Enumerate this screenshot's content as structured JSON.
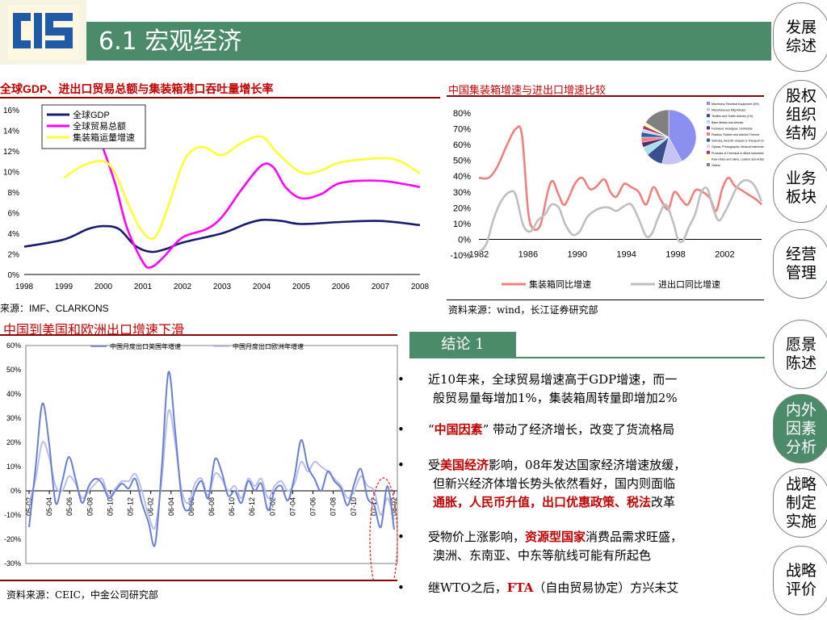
{
  "header": {
    "title": "6.1 宏观经济",
    "logo_color": "#1f5aa6"
  },
  "nav": {
    "items": [
      {
        "label": "发展\n综述",
        "active": false
      },
      {
        "label": "股权\n组织\n结构",
        "active": false
      },
      {
        "label": "业务\n板块",
        "active": false
      },
      {
        "label": "经营\n管理",
        "active": false
      },
      {
        "label": "愿景\n陈述",
        "active": false
      },
      {
        "label": "内外\n因素\n分析",
        "active": true
      },
      {
        "label": "战略\n制定\n实施",
        "active": false
      },
      {
        "label": "战略\n评价",
        "active": false
      }
    ]
  },
  "chart1": {
    "title_parts": [
      "全球",
      "GDP",
      "、进出口贸易总额与集装箱港口吞吐量增长率"
    ],
    "source": "来源：IMF、CLARKONS",
    "chart_data": {
      "type": "line",
      "x": [
        "1998",
        "1999",
        "2000",
        "2001",
        "2002",
        "2003",
        "2004",
        "2005",
        "2006",
        "2007",
        "2008"
      ],
      "yticks": [
        "0%",
        "2%",
        "4%",
        "6%",
        "8%",
        "10%",
        "12%",
        "14%",
        "16%"
      ],
      "ylim": [
        0,
        16
      ],
      "series": [
        {
          "name": "全球GDP",
          "color": "#1a1a6e",
          "points": [
            [
              1998,
              2.7
            ],
            [
              1999,
              3.4
            ],
            [
              1999.6,
              4.4
            ],
            [
              2000,
              4.7
            ],
            [
              2000.4,
              4.4
            ],
            [
              2000.8,
              2.8
            ],
            [
              2001.2,
              2.2
            ],
            [
              2001.6,
              2.5
            ],
            [
              2002,
              3.1
            ],
            [
              2003,
              4.0
            ],
            [
              2003.6,
              4.9
            ],
            [
              2004,
              5.3
            ],
            [
              2004.5,
              5.2
            ],
            [
              2005,
              4.9
            ],
            [
              2006,
              5.1
            ],
            [
              2007,
              5.2
            ],
            [
              2008,
              4.8
            ]
          ]
        },
        {
          "name": "全球贸易总额",
          "color": "#ff00ff",
          "points": [
            [
              2000,
              12.2
            ],
            [
              2000.3,
              8.8
            ],
            [
              2000.6,
              4.5
            ],
            [
              2001,
              1.2
            ],
            [
              2001.2,
              0.7
            ],
            [
              2001.5,
              1.6
            ],
            [
              2002,
              3.6
            ],
            [
              2002.6,
              4.4
            ],
            [
              2003,
              5.6
            ],
            [
              2003.5,
              8.3
            ],
            [
              2004,
              10.6
            ],
            [
              2004.3,
              10.4
            ],
            [
              2004.6,
              8.5
            ],
            [
              2005,
              7.4
            ],
            [
              2005.5,
              7.8
            ],
            [
              2006,
              8.9
            ],
            [
              2007,
              9.1
            ],
            [
              2008,
              8.5
            ]
          ]
        },
        {
          "name": "集装箱运量增速",
          "color": "#ffff33",
          "points": [
            [
              1999,
              9.4
            ],
            [
              1999.5,
              10.6
            ],
            [
              2000,
              11.0
            ],
            [
              2000.3,
              9.8
            ],
            [
              2000.7,
              6.2
            ],
            [
              2001,
              4.1
            ],
            [
              2001.3,
              3.6
            ],
            [
              2001.6,
              6.2
            ],
            [
              2002,
              10.7
            ],
            [
              2002.3,
              12.2
            ],
            [
              2002.6,
              12.3
            ],
            [
              2003,
              11.6
            ],
            [
              2003.5,
              12.8
            ],
            [
              2004,
              13.4
            ],
            [
              2004.4,
              11.8
            ],
            [
              2005,
              9.9
            ],
            [
              2005.5,
              10.1
            ],
            [
              2006,
              10.9
            ],
            [
              2007,
              11.3
            ],
            [
              2007.5,
              11.0
            ],
            [
              2008,
              9.8
            ]
          ]
        }
      ]
    }
  },
  "chart2": {
    "title": "中国集装箱增速与进出口增速比较",
    "source": "资料来源：wind，长江证券研究部",
    "chart_data": {
      "type": "line",
      "xticks": [
        "1982",
        "1986",
        "1990",
        "1994",
        "1998",
        "2002"
      ],
      "yticks": [
        "-10%",
        "0%",
        "10%",
        "20%",
        "30%",
        "40%",
        "50%",
        "60%",
        "70%",
        "80%"
      ],
      "ylim": [
        -10,
        80
      ],
      "xlim": [
        1982,
        2005
      ],
      "series": [
        {
          "name": "集装箱同比增速",
          "color": "#f08080",
          "points": [
            [
              1982,
              39
            ],
            [
              1982.8,
              39
            ],
            [
              1983.5,
              46
            ],
            [
              1984.3,
              60
            ],
            [
              1985,
              70
            ],
            [
              1985.5,
              66
            ],
            [
              1986,
              18
            ],
            [
              1986.4,
              7
            ],
            [
              1987,
              9
            ],
            [
              1987.6,
              30
            ],
            [
              1988,
              37
            ],
            [
              1988.5,
              28
            ],
            [
              1989,
              22
            ],
            [
              1989.8,
              35
            ],
            [
              1990.4,
              39
            ],
            [
              1991,
              32
            ],
            [
              1991.5,
              33
            ],
            [
              1992.2,
              38
            ],
            [
              1992.7,
              30
            ],
            [
              1993.2,
              27
            ],
            [
              1993.8,
              35
            ],
            [
              1994.4,
              33
            ],
            [
              1995,
              30
            ],
            [
              1995.6,
              22
            ],
            [
              1996.2,
              33
            ],
            [
              1996.8,
              25
            ],
            [
              1997.4,
              19
            ],
            [
              1997.9,
              30
            ],
            [
              1998.5,
              25
            ],
            [
              1999,
              22
            ],
            [
              1999.6,
              31
            ],
            [
              2000.2,
              30
            ],
            [
              2000.8,
              26
            ],
            [
              2001.3,
              18
            ],
            [
              2001.8,
              32
            ],
            [
              2002.3,
              39
            ],
            [
              2002.8,
              34
            ],
            [
              2003.4,
              31
            ],
            [
              2004,
              28
            ],
            [
              2004.6,
              25
            ],
            [
              2005,
              22
            ]
          ]
        },
        {
          "name": "进出口同比增速",
          "color": "#bfbfbf",
          "points": [
            [
              1982,
              -8
            ],
            [
              1982.6,
              -3
            ],
            [
              1983.2,
              13
            ],
            [
              1983.8,
              24
            ],
            [
              1984.5,
              30
            ],
            [
              1985,
              28
            ],
            [
              1985.6,
              9
            ],
            [
              1986.2,
              5
            ],
            [
              1986.8,
              12
            ],
            [
              1987.4,
              16
            ],
            [
              1987.9,
              22
            ],
            [
              1988.5,
              20
            ],
            [
              1989,
              10
            ],
            [
              1989.6,
              3
            ],
            [
              1990.2,
              5
            ],
            [
              1990.8,
              14
            ],
            [
              1991.4,
              18
            ],
            [
              1992,
              20
            ],
            [
              1992.6,
              20
            ],
            [
              1993.2,
              18
            ],
            [
              1993.8,
              21
            ],
            [
              1994.4,
              22
            ],
            [
              1995,
              13
            ],
            [
              1995.6,
              2
            ],
            [
              1996.1,
              4
            ],
            [
              1996.6,
              14
            ],
            [
              1997.2,
              22
            ],
            [
              1997.8,
              11
            ],
            [
              1998.2,
              0
            ],
            [
              1998.6,
              -1
            ],
            [
              1999.1,
              8
            ],
            [
              1999.6,
              16
            ],
            [
              2000.1,
              30
            ],
            [
              2000.6,
              32
            ],
            [
              2001,
              21
            ],
            [
              2001.5,
              12
            ],
            [
              2002,
              17
            ],
            [
              2002.5,
              25
            ],
            [
              2003,
              33
            ],
            [
              2003.5,
              37
            ],
            [
              2004,
              37
            ],
            [
              2004.5,
              33
            ],
            [
              2005,
              24
            ]
          ]
        }
      ]
    },
    "pie": {
      "values": [
        42,
        12,
        10,
        5,
        3,
        3,
        3,
        2,
        2,
        2,
        16
      ],
      "colors": [
        "#8a8ff0",
        "#c4c4f5",
        "#3b4f8f",
        "#a8e0f0",
        "#5a2d6e",
        "#f08080",
        "#3060a0",
        "#d0d0ff",
        "#b03060",
        "#ffffb0",
        "#808080"
      ],
      "legend": [
        "Machinery Electrical Equipment (8%)",
        "Miscellaneous Mfg Articles",
        "Textiles and Textile Articles (1%)",
        "Base Metals and Articles",
        "Footwear, Headgear, Umbrellas",
        "Plastics, Rubber and Articles Thereof",
        "Vehicles, Aircraft, Vessels & Transport Equip",
        "Optical, Photographic, Musical Instruments (2%)",
        "Products of Chemical or Allied Industries",
        "Raw Hides and Skins, Leather and Articles",
        "Others"
      ]
    }
  },
  "chart3": {
    "title": "中国到美国和欧洲出口增速下滑",
    "source": "资料来源：CEIC，中金公司研究部",
    "chart_data": {
      "type": "line",
      "xticks": [
        "05-02",
        "05-04",
        "05-06",
        "05-08",
        "05-10",
        "05-12",
        "06-02",
        "06-04",
        "06-06",
        "06-08",
        "06-10",
        "06-12",
        "07-02",
        "07-04",
        "07-06",
        "07-08",
        "07-10",
        "07-12",
        "08-02"
      ],
      "yticks": [
        "-30%",
        "-20%",
        "-10%",
        "0%",
        "10%",
        "20%",
        "30%",
        "40%",
        "50%",
        "60%"
      ],
      "ylim": [
        -30,
        60
      ],
      "series": [
        {
          "name": "中国月度出口美国年增速",
          "color": "#6a7fd0",
          "values": [
            -15,
            10,
            36,
            20,
            -5,
            4,
            14,
            5,
            -5,
            2,
            5,
            3,
            -3,
            0,
            3,
            1,
            5,
            -5,
            -13,
            -22,
            10,
            49,
            25,
            -3,
            -8,
            0,
            4,
            -3,
            13,
            8,
            -2,
            0,
            -5,
            4,
            0,
            3,
            -8,
            0,
            2,
            -4,
            6,
            21,
            10,
            5,
            0,
            8,
            4,
            1,
            -6,
            3,
            9,
            -3,
            -6,
            -15,
            2,
            -16
          ]
        },
        {
          "name": "中国月度出口欧洲年增速",
          "color": "#b8bff0",
          "values": [
            -5,
            5,
            20,
            14,
            2,
            0,
            6,
            3,
            -3,
            0,
            3,
            5,
            -2,
            1,
            4,
            4,
            7,
            0,
            -10,
            -15,
            5,
            33,
            20,
            0,
            -5,
            3,
            5,
            -2,
            7,
            5,
            0,
            2,
            -3,
            5,
            2,
            5,
            -3,
            2,
            4,
            0,
            3,
            12,
            8,
            12,
            10,
            8,
            5,
            2,
            -3,
            0,
            6,
            2,
            0,
            -10,
            -3,
            -12
          ]
        }
      ]
    }
  },
  "conclusion": {
    "label": "结论 1",
    "bullets": [
      [
        [
          {
            "t": "近10年来，全球贸易增速高于GDP增速，而一"
          }
        ],
        [
          {
            "t": "般贸易量每增加1%，集装箱周转量即增加2%"
          }
        ]
      ],
      [
        [
          {
            "t": "“"
          },
          {
            "t": "中国因素",
            "r": true
          },
          {
            "t": "” 带动了经济增长，改变了货流格局"
          }
        ]
      ],
      [
        [
          {
            "t": "受"
          },
          {
            "t": "美国经济",
            "r": true
          },
          {
            "t": "影响，08年发达国家经济增速放缓，"
          }
        ],
        [
          {
            "t": "但新兴经济体增长势头依然看好，国内则面临"
          }
        ],
        [
          {
            "t": "通胀，人民币升值，出口优惠政策、税法",
            "r": true
          },
          {
            "t": "改革"
          }
        ]
      ],
      [
        [
          {
            "t": "受物价上涨影响，"
          },
          {
            "t": "资源型国家",
            "r": true
          },
          {
            "t": "消费品需求旺盛，"
          }
        ],
        [
          {
            "t": "澳洲、东南亚、中东等航线可能有所起色"
          }
        ]
      ],
      [
        [
          {
            "t": "继WTO之后，"
          },
          {
            "t": "FTA",
            "r": true
          },
          {
            "t": "（自由贸易协定）方兴未艾"
          }
        ]
      ]
    ]
  }
}
